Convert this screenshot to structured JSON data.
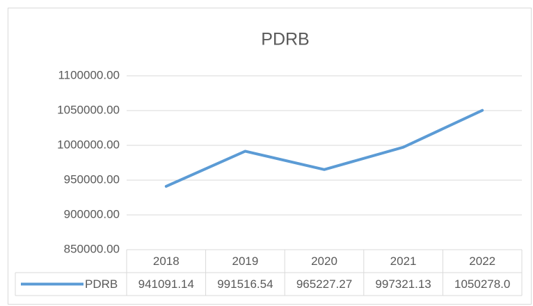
{
  "chart_data": {
    "type": "line",
    "title": "PDRB",
    "categories": [
      "2018",
      "2019",
      "2020",
      "2021",
      "2022"
    ],
    "series": [
      {
        "name": "PDRB",
        "color": "#5b9bd5",
        "values": [
          941091.14,
          991516.54,
          965227.27,
          997321.13,
          1050278.0
        ],
        "value_labels": [
          "941091.14",
          "991516.54",
          "965227.27",
          "997321.13",
          "1050278.0"
        ]
      }
    ],
    "ylim": [
      850000,
      1100000
    ],
    "yticks": [
      {
        "value": 850000,
        "label": "850000.00"
      },
      {
        "value": 900000,
        "label": "900000.00"
      },
      {
        "value": 950000,
        "label": "950000.00"
      },
      {
        "value": 1000000,
        "label": "1000000.00"
      },
      {
        "value": 1050000,
        "label": "1050000.00"
      },
      {
        "value": 1100000,
        "label": "1100000.00"
      }
    ],
    "grid": true
  }
}
